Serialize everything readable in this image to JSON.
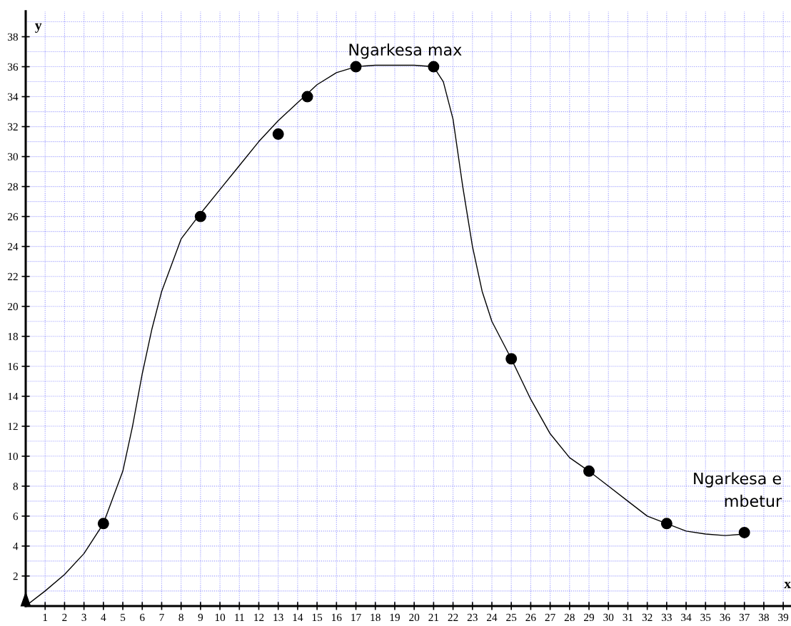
{
  "chart_data": {
    "type": "line",
    "xlabel": "x",
    "ylabel": "y",
    "series": [
      {
        "color": "#000000",
        "marker": "none",
        "line_style": "solid",
        "x": [
          0,
          1,
          2,
          3,
          4,
          5,
          5.5,
          6,
          6.5,
          7,
          8,
          9,
          10,
          11,
          12,
          13,
          14,
          15,
          16,
          17,
          18,
          19,
          20,
          21,
          21.5,
          22,
          22.5,
          23,
          23.5,
          24,
          25,
          26,
          27,
          28,
          29,
          30,
          31,
          32,
          33,
          34,
          35,
          36,
          37
        ],
        "values": [
          0,
          1,
          2.1,
          3.5,
          5.5,
          9,
          12,
          15.5,
          18.5,
          21,
          24.5,
          26.2,
          27.8,
          29.4,
          31,
          32.4,
          33.6,
          34.8,
          35.6,
          36,
          36.1,
          36.1,
          36.1,
          36,
          35,
          32.5,
          28,
          24,
          21,
          19,
          16.5,
          13.8,
          11.5,
          9.9,
          9,
          8,
          7,
          6,
          5.5,
          5,
          4.8,
          4.7,
          4.8
        ]
      },
      {
        "type": "scatter",
        "color": "#000000",
        "marker": "circle",
        "x": [
          4,
          9,
          13,
          14.5,
          17,
          21,
          25,
          29,
          33,
          37
        ],
        "values": [
          5.5,
          26,
          31.5,
          34,
          36,
          36,
          16.5,
          9,
          5.5,
          4.9
        ]
      }
    ],
    "annotations": [
      {
        "text": "Ngarkesa max",
        "x": 17,
        "y": 36
      },
      "Ngarkesa e mbetur"
    ],
    "xlim": [
      0,
      39.4
    ],
    "ylim": [
      0,
      39.7
    ],
    "xticks": [
      1,
      2,
      3,
      4,
      5,
      6,
      7,
      8,
      9,
      10,
      11,
      12,
      13,
      14,
      15,
      16,
      17,
      18,
      19,
      20,
      21,
      22,
      23,
      24,
      25,
      26,
      27,
      28,
      29,
      30,
      31,
      32,
      33,
      34,
      35,
      36,
      37,
      38,
      39
    ],
    "yticks": [
      2,
      4,
      6,
      8,
      10,
      12,
      14,
      16,
      18,
      20,
      22,
      24,
      26,
      28,
      30,
      32,
      34,
      36,
      38
    ],
    "grid": true
  }
}
